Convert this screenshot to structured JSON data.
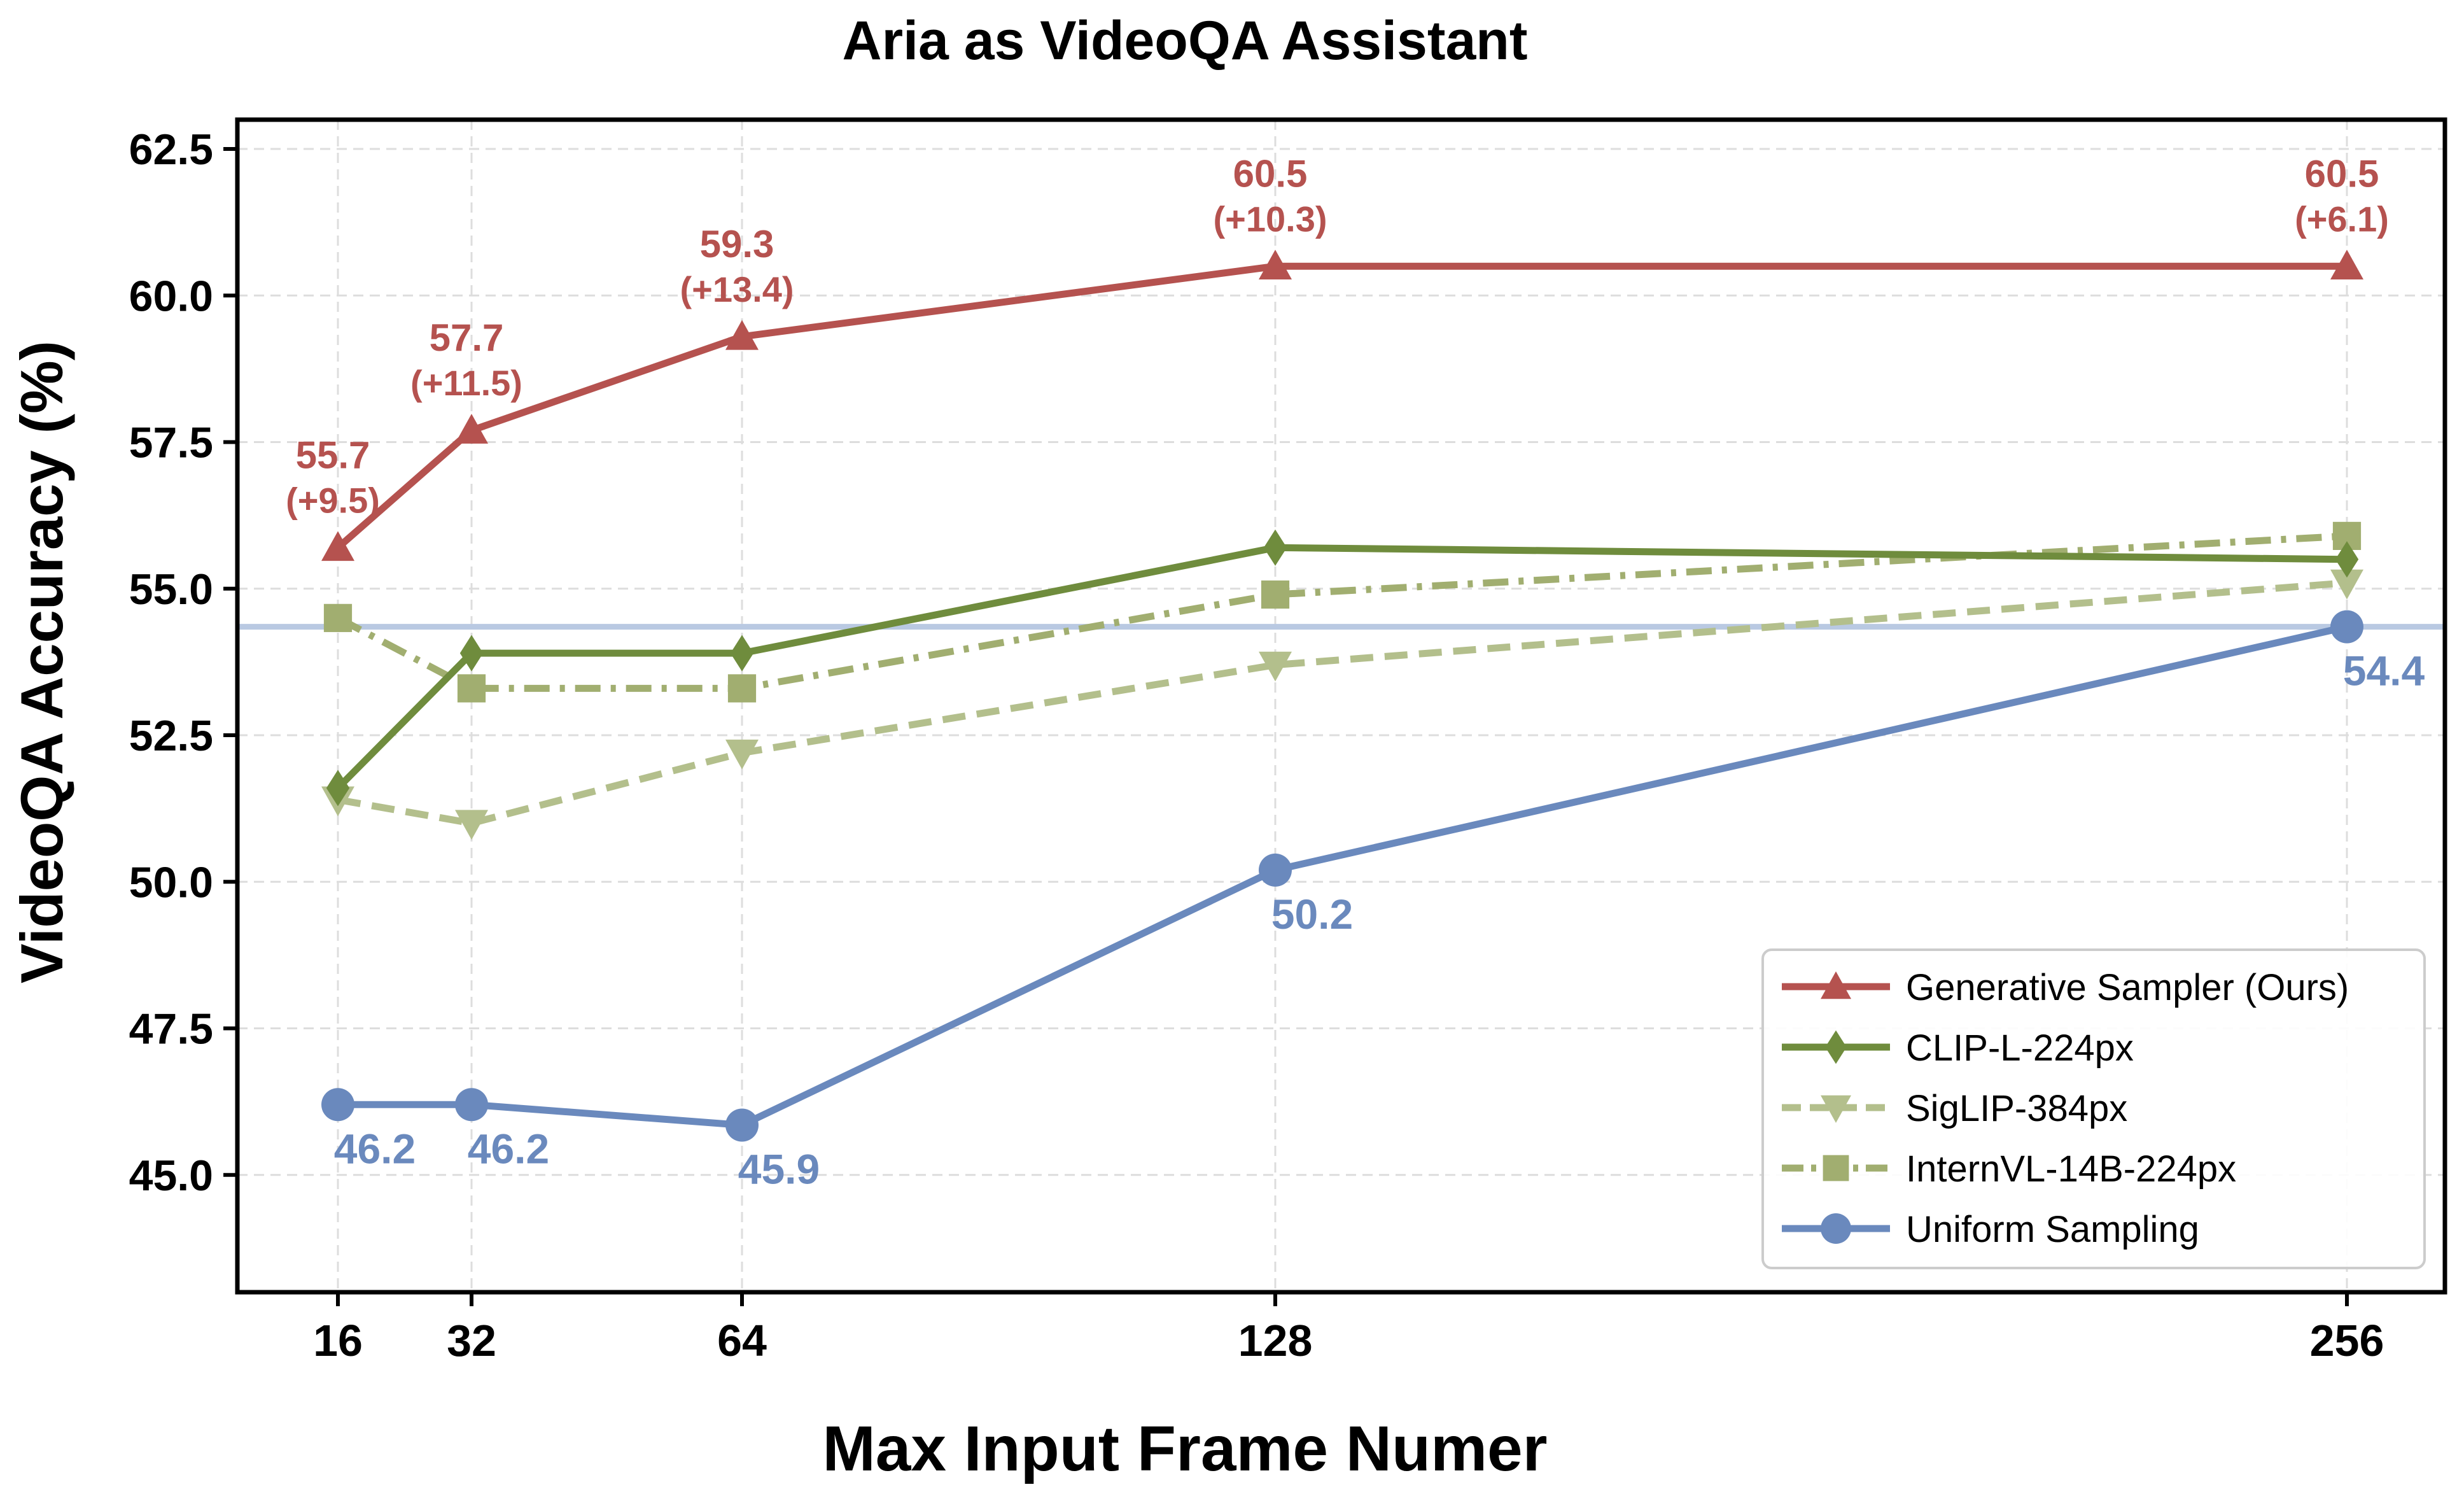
{
  "chart_data": {
    "type": "line",
    "title": "Aria as VideoQA Assistant",
    "xlabel": "Max Input Frame Numer",
    "ylabel": "VideoQA Accuracy (%)",
    "x": [
      16,
      32,
      64,
      128,
      256
    ],
    "x_tick_labels": [
      "16",
      "32",
      "64",
      "128",
      "256"
    ],
    "ylim": [
      43.0,
      63.0
    ],
    "y_ticks": [
      45.0,
      47.5,
      50.0,
      52.5,
      55.0,
      57.5,
      60.0,
      62.5
    ],
    "y_tick_labels": [
      "45.0",
      "47.5",
      "50.0",
      "52.5",
      "55.0",
      "57.5",
      "60.0",
      "62.5"
    ],
    "grid": true,
    "legend_position": "bottom-right",
    "baseline": {
      "y": 54.35,
      "color": "#b9c9e2"
    },
    "series": [
      {
        "name": "Generative Sampler (Ours)",
        "color": "#b5524f",
        "marker": "triangle-up",
        "dash": "solid",
        "values": [
          55.7,
          57.7,
          59.3,
          60.5,
          60.5
        ],
        "labels": [
          "55.7",
          "57.7",
          "59.3",
          "60.5",
          "60.5"
        ],
        "gains": [
          "(+9.5)",
          "(+11.5)",
          "(+13.4)",
          "(+10.3)",
          "(+6.1)"
        ]
      },
      {
        "name": "CLIP-L-224px",
        "color": "#6f8c3d",
        "marker": "diamond",
        "dash": "solid",
        "values": [
          51.6,
          53.9,
          53.9,
          55.7,
          55.5
        ]
      },
      {
        "name": "SigLIP-384px",
        "color": "#b3bf8c",
        "marker": "triangle-down",
        "dash": "dashed",
        "values": [
          51.4,
          51.0,
          52.2,
          53.7,
          55.1
        ]
      },
      {
        "name": "InternVL-14B-224px",
        "color": "#a1ae70",
        "marker": "square",
        "dash": "dashdot",
        "values": [
          54.5,
          53.3,
          53.3,
          54.9,
          55.9
        ]
      },
      {
        "name": "Uniform Sampling",
        "color": "#6a89bd",
        "marker": "circle",
        "dash": "solid",
        "values": [
          46.2,
          46.2,
          45.85,
          50.2,
          54.35
        ],
        "labels": [
          "46.2",
          "46.2",
          "45.9",
          "50.2",
          "54.4"
        ]
      }
    ]
  }
}
